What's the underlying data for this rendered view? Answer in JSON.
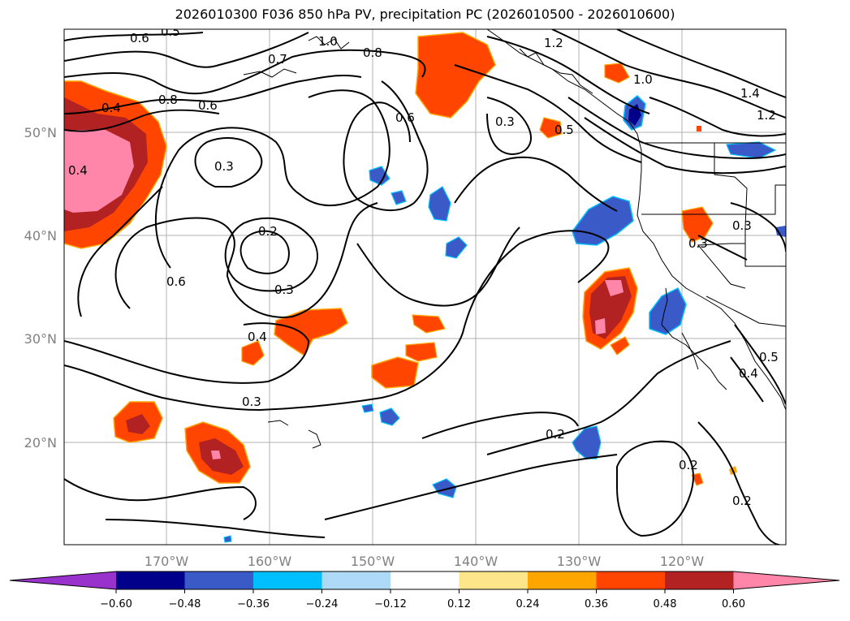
{
  "title": "2026010300 F036 850 hPa PV, precipitation PC (2026010500 - 2026010600)",
  "map": {
    "lon_labels": [
      "170°W",
      "160°W",
      "150°W",
      "140°W",
      "130°W",
      "120°W"
    ],
    "lat_labels": [
      "50°N",
      "40°N",
      "30°N",
      "20°N"
    ],
    "contour_labels": [
      "0.6",
      "0.5",
      "0.7",
      "0.8",
      "1.0",
      "1.2",
      "0.4",
      "0.8",
      "0.6",
      "0.3",
      "0.6",
      "0.3",
      "0.5",
      "1.0",
      "1.4",
      "1.2",
      "0.4",
      "0.2",
      "0.3",
      "0.6",
      "0.4",
      "0.3",
      "0.2",
      "0.2",
      "0.2",
      "0.3",
      "0.3",
      "0.4",
      "0.5"
    ]
  },
  "colorbar": {
    "ticks": [
      "−0.60",
      "−0.48",
      "−0.36",
      "−0.24",
      "−0.12",
      "0.12",
      "0.24",
      "0.36",
      "0.48",
      "0.60"
    ],
    "colors": [
      "#9932cc",
      "#00008b",
      "#3a5bc7",
      "#00bfff",
      "#add8f6",
      "#ffffff",
      "#fde68a",
      "#ffa500",
      "#ff4500",
      "#b22222",
      "#ff85a9"
    ]
  }
}
